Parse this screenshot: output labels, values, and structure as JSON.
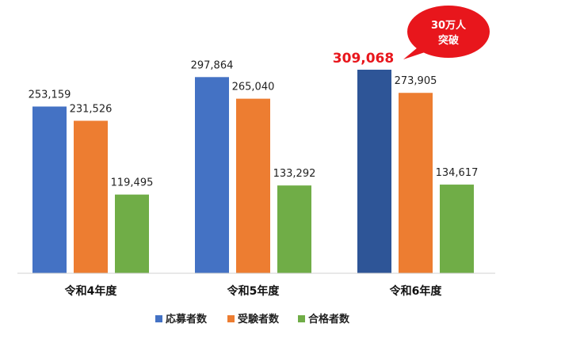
{
  "chart_data": {
    "type": "bar",
    "categories": [
      "令和4年度",
      "令和5年度",
      "令和6年度"
    ],
    "series": [
      {
        "name": "応募者数",
        "values": [
          253159,
          297864,
          309068
        ],
        "color": "#4472c4"
      },
      {
        "name": "受験者数",
        "values": [
          231526,
          265040,
          273905
        ],
        "color": "#ed7d31"
      },
      {
        "name": "合格者数",
        "values": [
          119495,
          133292,
          134617
        ],
        "color": "#70ad47"
      }
    ],
    "value_labels": [
      [
        "253,159",
        "297,864",
        "309,068"
      ],
      [
        "231,526",
        "265,040",
        "273,905"
      ],
      [
        "119,495",
        "133,292",
        "134,617"
      ]
    ],
    "highlight": {
      "series": 0,
      "category": 2,
      "bar_color": "#2e5597",
      "label_color": "#e8161c"
    },
    "callout": {
      "lines": [
        "30万人",
        "突破"
      ],
      "color": "#e8161c",
      "target_category": 2
    },
    "legend_position": "bottom",
    "ylim": [
      0,
      309068
    ],
    "grid": false,
    "title": "",
    "xlabel": "",
    "ylabel": ""
  }
}
